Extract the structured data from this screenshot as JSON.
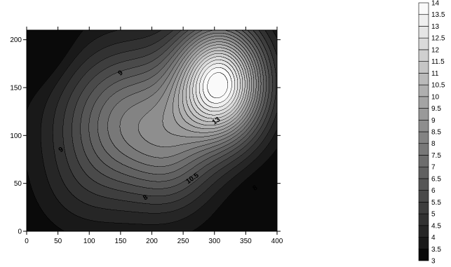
{
  "chart_data": {
    "type": "heatmap",
    "subtype": "filled-contour",
    "colormap": "grayscale",
    "colormap_direction": "low values black, high values white",
    "title": "",
    "xlabel": "",
    "ylabel": "",
    "xlim": [
      0,
      400
    ],
    "ylim": [
      0,
      210
    ],
    "x_ticks": [
      0,
      50,
      100,
      150,
      200,
      250,
      300,
      350,
      400
    ],
    "x_tick_labels": [
      "0",
      "50",
      "100",
      "150",
      "200",
      "250",
      "300",
      "350",
      "400"
    ],
    "y_ticks": [
      0,
      50,
      100,
      150,
      200
    ],
    "y_tick_labels": [
      "0",
      "50",
      "100",
      "150",
      "200"
    ],
    "grid": false,
    "legend_position": "right",
    "levels": [
      3,
      3.5,
      4,
      4.5,
      5,
      5.5,
      6,
      6.5,
      7,
      7.5,
      8,
      8.5,
      9,
      9.5,
      10,
      10.5,
      11,
      11.5,
      12,
      12.5,
      13,
      13.5,
      14
    ],
    "level_labels": [
      "3",
      "3.5",
      "4",
      "4.5",
      "5",
      "5.5",
      "6",
      "6.5",
      "7",
      "7.5",
      "8",
      "8.5",
      "9",
      "9.5",
      "10",
      "10.5",
      "11",
      "11.5",
      "12",
      "12.5",
      "13",
      "13.5",
      "14"
    ],
    "features": [
      {
        "kind": "peak",
        "x": 310,
        "y": 155,
        "value": 14
      },
      {
        "kind": "minimum",
        "x": 0,
        "y": 0,
        "value": 3
      },
      {
        "kind": "minimum",
        "x": 400,
        "y": 0,
        "value": 3.5
      },
      {
        "kind": "minimum",
        "x": 0,
        "y": 205,
        "value": 4.5
      },
      {
        "kind": "ridge",
        "x": 150,
        "y": 100,
        "value": 9.5
      }
    ],
    "contour_labels": [
      {
        "text": "9",
        "x": 150,
        "y": 165
      },
      {
        "text": "9",
        "x": 55,
        "y": 85
      },
      {
        "text": "13",
        "x": 303,
        "y": 115
      },
      {
        "text": "10.5",
        "x": 265,
        "y": 55
      },
      {
        "text": "8",
        "x": 190,
        "y": 35
      },
      {
        "text": "8",
        "x": 365,
        "y": 45
      }
    ]
  }
}
